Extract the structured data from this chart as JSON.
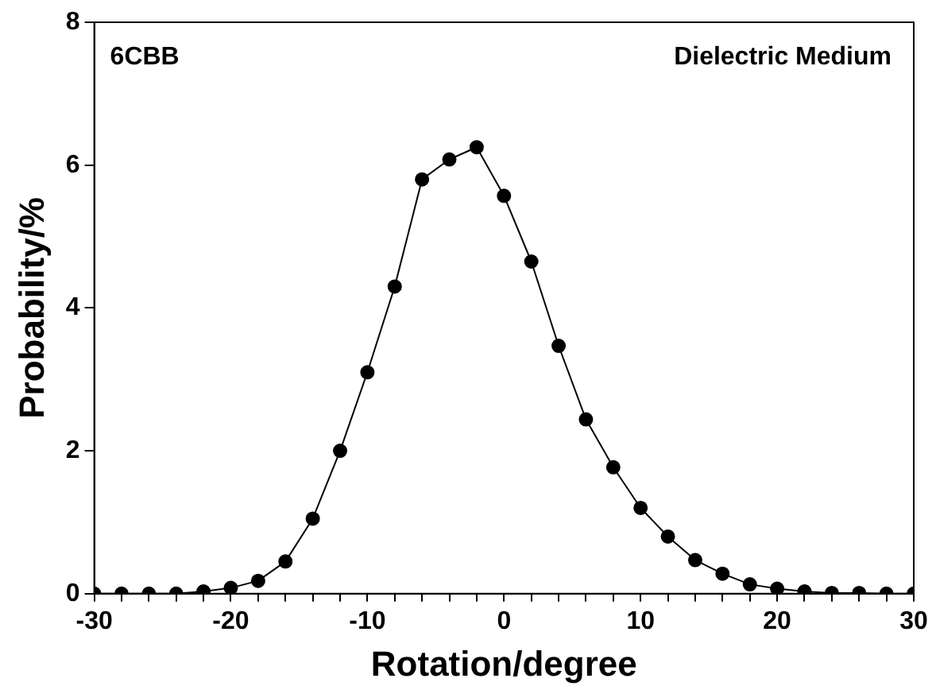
{
  "chart_data": {
    "type": "line",
    "xlabel": "Rotation/degree",
    "ylabel": "Probability/%",
    "annotations": [
      "6CBB",
      "Dielectric Medium"
    ],
    "x": [
      -30,
      -28,
      -26,
      -24,
      -22,
      -20,
      -18,
      -16,
      -14,
      -12,
      -10,
      -8,
      -6,
      -4,
      -2,
      0,
      2,
      4,
      6,
      8,
      10,
      12,
      14,
      16,
      18,
      20,
      22,
      24,
      26,
      28,
      30
    ],
    "series": [
      {
        "color": "#000000",
        "values": [
          0,
          0,
          0,
          0,
          0.03,
          0.08,
          0.18,
          0.45,
          1.05,
          2.0,
          3.1,
          4.3,
          5.8,
          6.08,
          6.25,
          5.57,
          4.65,
          3.47,
          2.44,
          1.77,
          1.2,
          0.8,
          0.47,
          0.28,
          0.13,
          0.07,
          0.03,
          0.01,
          0.01,
          0,
          0
        ]
      }
    ],
    "xlim": [
      -30,
      30
    ],
    "ylim": [
      0,
      8
    ],
    "xticks": [
      -30,
      {
        "value": -28,
        "label": null
      },
      {
        "value": -26,
        "label": null
      },
      {
        "value": -24,
        "label": null
      },
      {
        "value": -22,
        "label": null
      },
      -20,
      {
        "value": -18,
        "label": null
      },
      {
        "value": -16,
        "label": null
      },
      {
        "value": -14,
        "label": null
      },
      {
        "value": -12,
        "label": null
      },
      -10,
      {
        "value": -8,
        "label": null
      },
      {
        "value": -6,
        "label": null
      },
      {
        "value": -4,
        "label": null
      },
      {
        "value": -2,
        "label": null
      },
      0,
      {
        "value": 2,
        "label": null
      },
      {
        "value": 4,
        "label": null
      },
      {
        "value": 6,
        "label": null
      },
      {
        "value": 8,
        "label": null
      },
      10,
      {
        "value": 12,
        "label": null
      },
      {
        "value": 14,
        "label": null
      },
      {
        "value": 16,
        "label": null
      },
      {
        "value": 18,
        "label": null
      },
      20,
      {
        "value": 22,
        "label": null
      },
      {
        "value": 24,
        "label": null
      },
      {
        "value": 26,
        "label": null
      },
      {
        "value": 28,
        "label": null
      },
      30
    ],
    "yticks": [
      0,
      2,
      4,
      6,
      8
    ],
    "grid": false,
    "legend": false,
    "marker": "circle",
    "line_style": "solid"
  }
}
